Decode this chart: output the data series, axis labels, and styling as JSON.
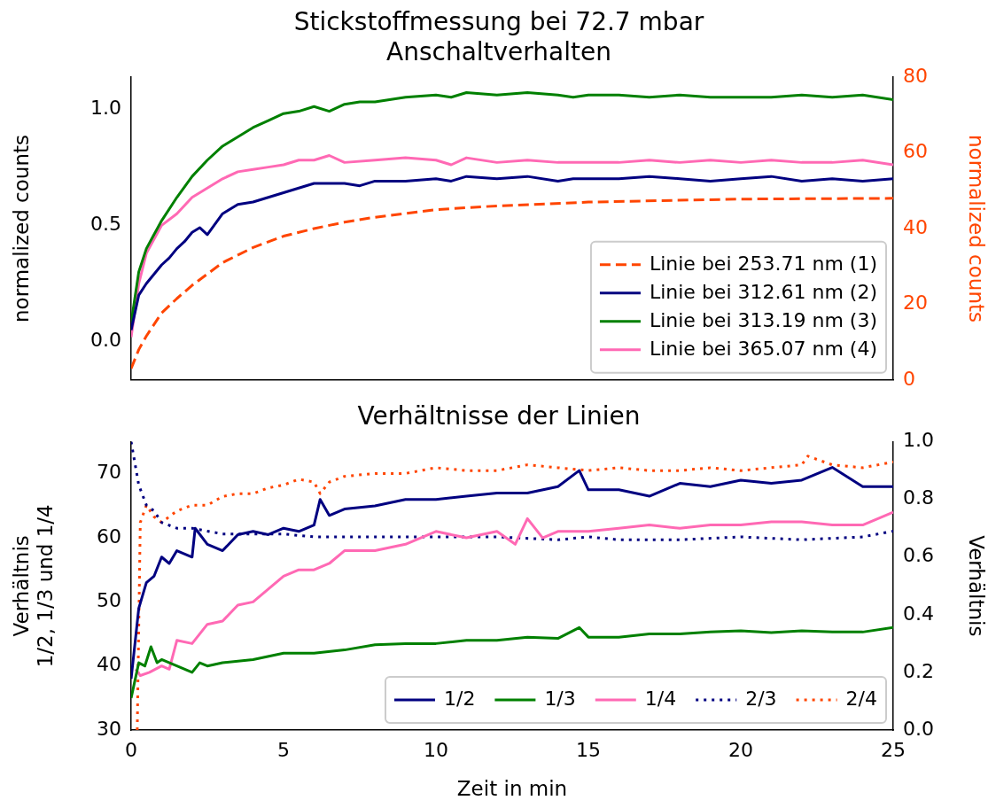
{
  "chart_data": [
    {
      "type": "line",
      "title": "Stickstoffmessung bei 72.7 mbar\nAnschaltverhalten",
      "ylabel": "normalized counts",
      "y2label": "normalized counts",
      "xlim": [
        0,
        25
      ],
      "xticks": [
        0,
        5,
        10,
        15,
        20,
        25
      ],
      "ylim": [
        -0.164,
        1.136
      ],
      "yticks": [
        {
          "value": 0,
          "label": "0.0"
        },
        {
          "value": 0.5,
          "label": "0.5"
        },
        {
          "value": 1,
          "label": "1.0"
        }
      ],
      "y2lim": [
        0,
        80
      ],
      "y2ticks": [
        0,
        20,
        40,
        60,
        80
      ],
      "tick_labels": "y",
      "legend": "bottom right",
      "marker": "none",
      "grid": false,
      "series": [
        {
          "name": "Linie bei 253.71 nm (1)",
          "color": "#ff4500",
          "axis": "y2",
          "line_style": "dashed",
          "x": [
            0,
            0.25,
            0.5,
            1,
            1.5,
            2,
            2.5,
            3,
            3.5,
            4,
            5,
            6,
            7,
            8,
            10,
            12,
            15,
            20,
            25
          ],
          "values": [
            3,
            8,
            11.6,
            17.7,
            21.5,
            25,
            28,
            31,
            33,
            35,
            38,
            40,
            41.7,
            43,
            45,
            46,
            47,
            47.8,
            48
          ]
        },
        {
          "name": "Linie bei 312.61 nm (2)",
          "color": "#000080",
          "line_style": "solid",
          "x": [
            0,
            0.25,
            0.5,
            0.75,
            1,
            1.25,
            1.5,
            1.75,
            2,
            2.25,
            2.5,
            3,
            3.5,
            4,
            4.5,
            5,
            5.5,
            6,
            6.5,
            7,
            7.5,
            8,
            9,
            10,
            10.5,
            11,
            12,
            13,
            14,
            14.5,
            15,
            16,
            17,
            18,
            19,
            20,
            21,
            22,
            23,
            24,
            25
          ],
          "values": [
            0.05,
            0.2,
            0.25,
            0.29,
            0.33,
            0.36,
            0.4,
            0.43,
            0.47,
            0.49,
            0.46,
            0.55,
            0.59,
            0.6,
            0.62,
            0.64,
            0.66,
            0.68,
            0.68,
            0.68,
            0.67,
            0.69,
            0.69,
            0.7,
            0.69,
            0.71,
            0.7,
            0.71,
            0.69,
            0.7,
            0.7,
            0.7,
            0.71,
            0.7,
            0.69,
            0.7,
            0.71,
            0.69,
            0.7,
            0.69,
            0.7
          ]
        },
        {
          "name": "Linie bei 313.19 nm (3)",
          "color": "#008000",
          "line_style": "solid",
          "x": [
            0,
            0.25,
            0.5,
            0.75,
            1,
            1.5,
            2,
            2.5,
            3,
            3.5,
            4,
            4.5,
            5,
            5.5,
            6,
            6.5,
            7,
            7.5,
            8,
            9,
            10,
            10.5,
            11,
            12,
            13,
            14,
            14.5,
            15,
            16,
            17,
            18,
            19,
            20,
            21,
            22,
            23,
            24,
            25
          ],
          "values": [
            0.08,
            0.3,
            0.4,
            0.46,
            0.52,
            0.62,
            0.71,
            0.78,
            0.84,
            0.88,
            0.92,
            0.95,
            0.98,
            0.99,
            1.01,
            0.99,
            1.02,
            1.03,
            1.03,
            1.05,
            1.06,
            1.05,
            1.07,
            1.06,
            1.07,
            1.06,
            1.05,
            1.06,
            1.06,
            1.05,
            1.06,
            1.05,
            1.05,
            1.05,
            1.06,
            1.05,
            1.06,
            1.04
          ]
        },
        {
          "name": "Linie bei 365.07 nm (4)",
          "color": "#ff69b4",
          "line_style": "solid",
          "x": [
            0,
            0.25,
            0.5,
            1,
            1.5,
            2,
            2.5,
            3,
            3.5,
            4,
            4.5,
            5,
            5.5,
            6,
            6.5,
            7,
            8,
            9,
            10,
            10.5,
            11,
            12,
            13,
            14,
            15,
            16,
            17,
            18,
            19,
            20,
            21,
            22,
            23,
            24,
            25
          ],
          "values": [
            0.02,
            0.25,
            0.38,
            0.5,
            0.55,
            0.62,
            0.66,
            0.7,
            0.73,
            0.74,
            0.75,
            0.76,
            0.78,
            0.78,
            0.8,
            0.77,
            0.78,
            0.79,
            0.78,
            0.76,
            0.79,
            0.77,
            0.78,
            0.77,
            0.77,
            0.77,
            0.78,
            0.77,
            0.78,
            0.77,
            0.78,
            0.77,
            0.77,
            0.78,
            0.76
          ]
        }
      ]
    },
    {
      "type": "line",
      "title": "Verhältnisse der Linien",
      "xlabel": "Zeit in min",
      "ylabel": "Verhältnis\n1/2, 1/3 und 1/4",
      "y2label": "Verhältnis",
      "xlim": [
        0,
        25
      ],
      "xticks": [
        0,
        5,
        10,
        15,
        20,
        25
      ],
      "ylim": [
        30,
        75
      ],
      "yticks": [
        30,
        40,
        50,
        60,
        70
      ],
      "y2lim": [
        0,
        1
      ],
      "y2ticks": [
        {
          "value": 0,
          "label": "0.0"
        },
        {
          "value": 0.2,
          "label": "0.2"
        },
        {
          "value": 0.4,
          "label": "0.4"
        },
        {
          "value": 0.6,
          "label": "0.6"
        },
        {
          "value": 0.8,
          "label": "0.8"
        },
        {
          "value": 1,
          "label": "1.0"
        }
      ],
      "legend": "bottom right",
      "marker": "none",
      "grid": false,
      "series": [
        {
          "name": "1/2",
          "color": "#000080",
          "line_style": "solid",
          "x": [
            0,
            0.25,
            0.5,
            0.75,
            1,
            1.25,
            1.5,
            2,
            2.1,
            2.5,
            3,
            3.5,
            4,
            4.5,
            5,
            5.5,
            6,
            6.2,
            6.5,
            7,
            8,
            9,
            10,
            11,
            12,
            13,
            14,
            14.7,
            15,
            16,
            17,
            18,
            19,
            20,
            21,
            22,
            23,
            24,
            25
          ],
          "values": [
            38,
            49,
            53,
            54,
            57,
            56,
            58,
            57,
            61.5,
            59,
            58,
            60.5,
            61,
            60.5,
            61.5,
            61,
            62,
            66,
            63.5,
            64.5,
            65,
            66,
            66,
            66.5,
            67,
            67,
            68,
            70.5,
            67.5,
            67.5,
            66.5,
            68.5,
            68,
            69,
            68.5,
            69,
            71,
            68,
            68
          ]
        },
        {
          "name": "1/3",
          "color": "#008000",
          "line_style": "solid",
          "x": [
            0,
            0.25,
            0.45,
            0.65,
            0.85,
            1,
            1.5,
            2,
            2.25,
            2.5,
            3,
            4,
            5,
            6,
            7,
            8,
            9,
            10,
            11,
            12,
            13,
            14,
            14.7,
            15,
            16,
            17,
            18,
            19,
            20,
            21,
            22,
            23,
            24,
            25
          ],
          "values": [
            35,
            40.5,
            40,
            43,
            40.5,
            41,
            40,
            39,
            40.5,
            40,
            40.5,
            41,
            42,
            42,
            42.5,
            43.3,
            43.5,
            43.5,
            44,
            44,
            44.5,
            44.3,
            46,
            44.5,
            44.5,
            45,
            45,
            45.3,
            45.5,
            45.2,
            45.5,
            45.3,
            45.3,
            46
          ]
        },
        {
          "name": "1/4",
          "color": "#ff69b4",
          "line_style": "solid",
          "x": [
            0.15,
            0.3,
            0.6,
            1,
            1.25,
            1.5,
            2,
            2.5,
            3,
            3.5,
            4,
            4.5,
            5,
            5.5,
            6,
            6.5,
            7,
            7.5,
            8,
            9,
            10,
            11,
            12,
            12.6,
            13,
            13.5,
            14,
            15,
            16,
            17,
            18,
            19,
            20,
            21,
            22,
            23,
            24,
            25
          ],
          "values": [
            39.5,
            38.5,
            39,
            40,
            39.5,
            44,
            43.5,
            46.5,
            47,
            49.5,
            50,
            52,
            54,
            55,
            55,
            56,
            58,
            58,
            58,
            59,
            61,
            60,
            61,
            59,
            63,
            60,
            61,
            61,
            61.5,
            62,
            61.5,
            62,
            62,
            62.5,
            62.5,
            62,
            62,
            64
          ]
        },
        {
          "name": "2/3",
          "color": "#000080",
          "axis": "y2",
          "line_style": "dotted",
          "x": [
            0,
            0.25,
            0.5,
            0.75,
            1,
            1.5,
            2,
            2.5,
            3,
            4,
            5,
            6,
            7,
            8,
            10,
            12,
            14,
            15,
            16,
            18,
            20,
            22,
            24,
            25
          ],
          "values": [
            1,
            0.85,
            0.78,
            0.76,
            0.72,
            0.7,
            0.7,
            0.69,
            0.68,
            0.68,
            0.68,
            0.67,
            0.67,
            0.67,
            0.67,
            0.67,
            0.66,
            0.67,
            0.66,
            0.66,
            0.67,
            0.66,
            0.67,
            0.69
          ]
        },
        {
          "name": "2/4",
          "color": "#ff4500",
          "axis": "y2",
          "line_style": "dotted",
          "x": [
            0.2,
            0.3,
            0.5,
            0.75,
            1,
            1.5,
            2,
            2.5,
            3,
            3.5,
            4,
            4.5,
            5,
            5.5,
            6,
            6.2,
            6.5,
            7,
            8,
            9,
            10,
            11,
            12,
            13,
            14,
            15,
            16,
            17,
            18,
            19,
            20,
            21,
            22,
            22.2,
            23,
            24,
            25
          ],
          "values": [
            0,
            0.72,
            0.78,
            0.74,
            0.72,
            0.76,
            0.78,
            0.78,
            0.81,
            0.82,
            0.82,
            0.84,
            0.85,
            0.87,
            0.86,
            0.82,
            0.86,
            0.88,
            0.89,
            0.89,
            0.91,
            0.9,
            0.9,
            0.92,
            0.91,
            0.9,
            0.91,
            0.9,
            0.9,
            0.91,
            0.9,
            0.91,
            0.92,
            0.95,
            0.92,
            0.91,
            0.93
          ]
        }
      ]
    }
  ]
}
